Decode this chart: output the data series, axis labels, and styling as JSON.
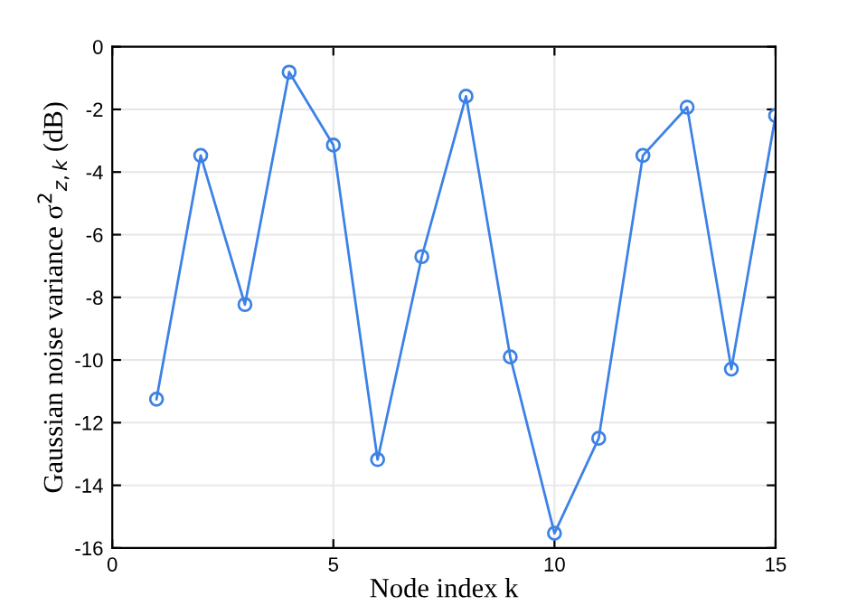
{
  "chart_data": {
    "type": "line",
    "xlabel": "Node index k",
    "ylabel": "Gaussian noise variance σ$^{2}$$_{z,k}$ (dB)",
    "x": [
      1,
      2,
      3,
      4,
      5,
      6,
      7,
      8,
      9,
      10,
      11,
      12,
      13,
      14,
      15
    ],
    "series": [
      {
        "color": "#3c82e6",
        "values": [
          -11.25,
          -3.47,
          -8.23,
          -0.81,
          -3.14,
          -13.18,
          -6.7,
          -1.58,
          -9.9,
          -15.53,
          -12.5,
          -3.47,
          -1.93,
          -10.29,
          -2.2
        ]
      }
    ],
    "xlim": [
      0,
      15
    ],
    "xticks": [
      0,
      5,
      10,
      15
    ],
    "ylim": [
      -16,
      0
    ],
    "yticks": [
      -16,
      -14,
      -12,
      -10,
      -8,
      -6,
      -4,
      -2,
      0
    ],
    "grid": true,
    "marker": "circle",
    "line_style": "solid"
  }
}
